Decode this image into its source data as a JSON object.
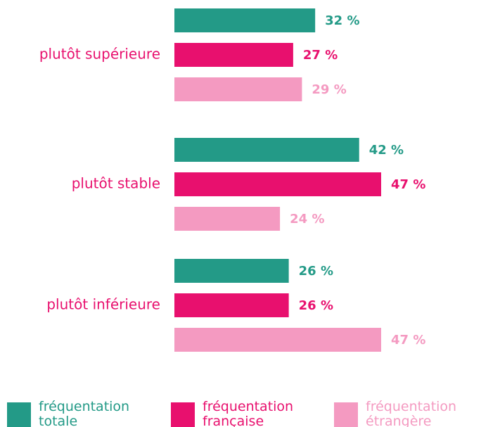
{
  "chart_data": {
    "type": "bar",
    "orientation": "horizontal",
    "categories": [
      "plutôt supérieure",
      "plutôt stable",
      "plutôt inférieure"
    ],
    "series": [
      {
        "name": "fréquentation totale",
        "color": "#239a87",
        "values": [
          32,
          42,
          26
        ],
        "value_labels": [
          "32 %",
          "42 %",
          "26 %"
        ]
      },
      {
        "name": "fréquentation française",
        "color": "#e8106e",
        "values": [
          27,
          47,
          26
        ],
        "value_labels": [
          "27 %",
          "47 %",
          "26 %"
        ]
      },
      {
        "name": "fréquentation étrangère",
        "color": "#f49ac1",
        "values": [
          29,
          24,
          47
        ],
        "value_labels": [
          "29 %",
          "24 %",
          "47 %"
        ]
      }
    ]
  }
}
